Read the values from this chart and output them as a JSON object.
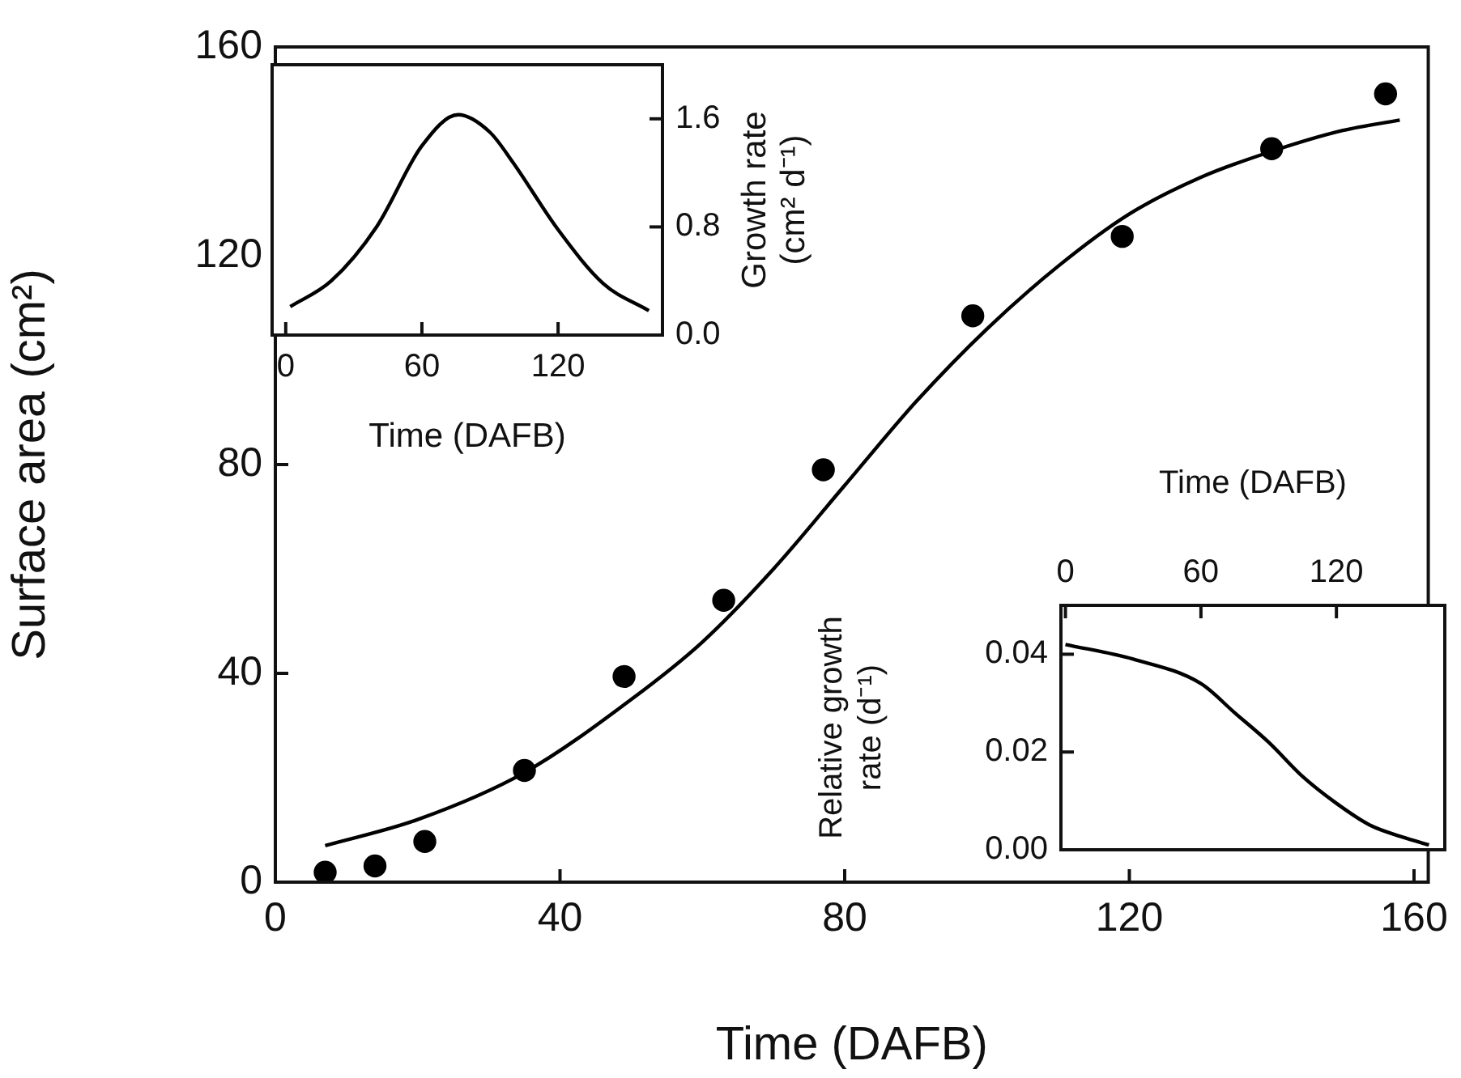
{
  "chart_data": [
    {
      "type": "scatter",
      "xlabel": "Time (DAFB)",
      "ylabel": "Surface area (cm²)",
      "xlim": [
        0,
        162
      ],
      "xticks": [
        0,
        40,
        80,
        120,
        160
      ],
      "ylim": [
        0,
        160
      ],
      "yticks": [
        0,
        40,
        80,
        120,
        160
      ],
      "series": [
        {
          "marker": "circle",
          "color": "#000000",
          "x": [
            7,
            14,
            21,
            35,
            49,
            63,
            77,
            98,
            119,
            140,
            156
          ],
          "values": [
            1.9,
            3.1,
            7.8,
            21.4,
            39.4,
            54,
            79,
            108.5,
            123.7,
            140.5,
            151
          ]
        },
        {
          "type": "line",
          "marker": "none",
          "color": "#000000",
          "x": [
            7,
            20,
            35,
            50,
            60,
            70,
            80,
            90,
            100,
            110,
            120,
            130,
            140,
            150,
            158
          ],
          "values": [
            7,
            12,
            21,
            35,
            46,
            60,
            76,
            92,
            106,
            118,
            128,
            135,
            140,
            144,
            146
          ]
        }
      ]
    },
    {
      "type": "line",
      "xlabel": "Time (DAFB)",
      "y2label": "Growth rate (cm² d⁻¹)",
      "xlim": [
        -6,
        166
      ],
      "xticks": [
        0,
        60,
        120
      ],
      "y2lim": [
        0,
        2
      ],
      "y2ticks": [
        {
          "value": 0,
          "label": "0.0"
        },
        0.8,
        1.6
      ],
      "series": [
        {
          "axis": "y2",
          "color": "#000000",
          "x": [
            2,
            20,
            40,
            60,
            76,
            90,
            100,
            120,
            140,
            160
          ],
          "values": [
            0.21,
            0.4,
            0.8,
            1.4,
            1.63,
            1.5,
            1.28,
            0.78,
            0.38,
            0.18
          ]
        }
      ]
    },
    {
      "type": "line",
      "xlabel": "Time (DAFB)",
      "ylabel": "Relative growth rate (d⁻¹)",
      "xlim": [
        -2,
        168
      ],
      "xticks": [
        0,
        60,
        120
      ],
      "ylim": [
        0,
        0.05
      ],
      "yticks": [
        {
          "value": 0,
          "label": "0.00"
        },
        {
          "value": 0.02,
          "label": "0.02"
        },
        {
          "value": 0.04,
          "label": "0.04"
        }
      ],
      "series": [
        {
          "color": "#000000",
          "x": [
            0,
            30,
            60,
            75,
            90,
            105,
            120,
            135,
            150,
            161
          ],
          "values": [
            0.042,
            0.039,
            0.034,
            0.028,
            0.022,
            0.015,
            0.0095,
            0.005,
            0.0025,
            0.001
          ]
        }
      ]
    }
  ]
}
